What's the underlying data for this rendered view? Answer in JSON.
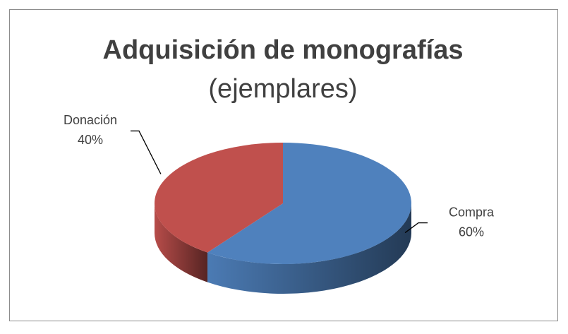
{
  "chart_data": {
    "type": "pie",
    "title": "Adquisición de monografías",
    "subtitle": "(ejemplares)",
    "categories": [
      "Compra",
      "Donación"
    ],
    "values": [
      60,
      40
    ],
    "value_labels": [
      "60%",
      "40%"
    ],
    "colors": [
      "#4f81bd",
      "#c0504d"
    ]
  }
}
